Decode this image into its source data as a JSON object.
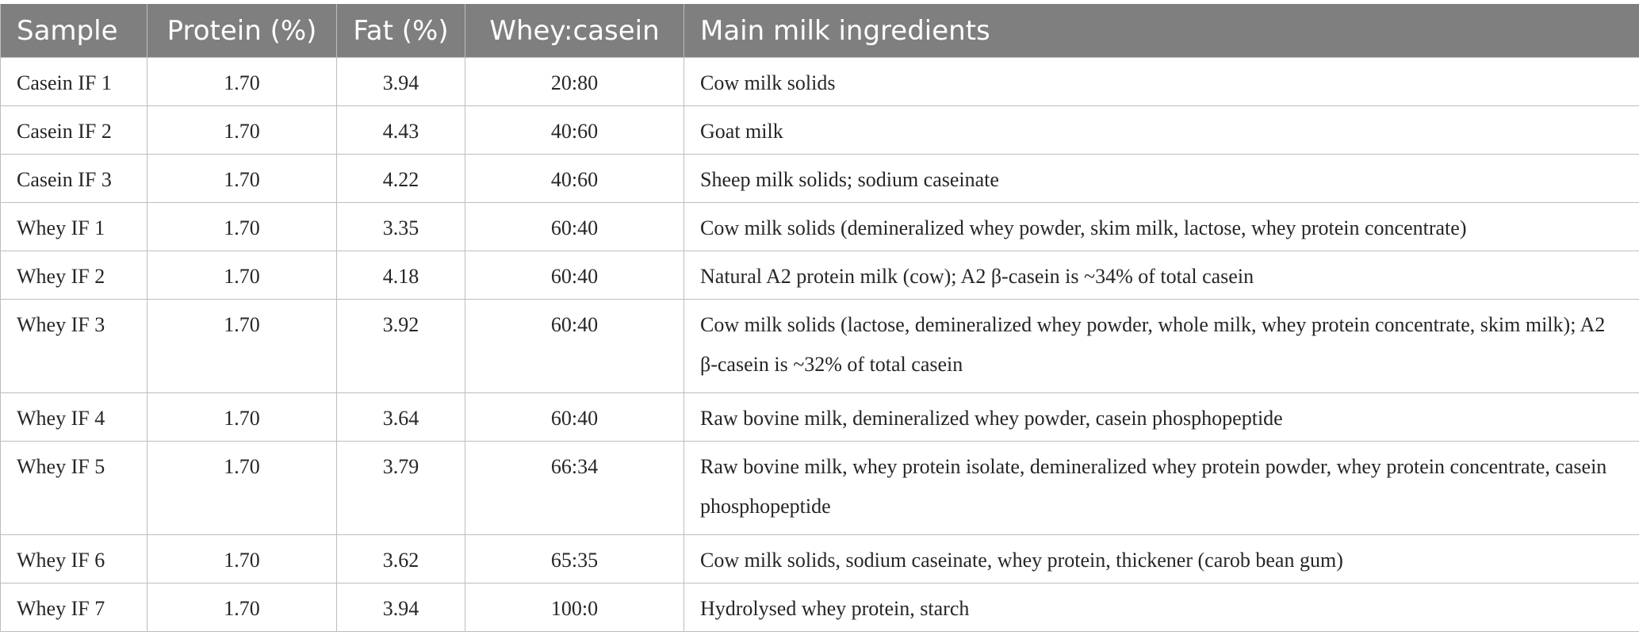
{
  "table": {
    "headers": [
      "Sample",
      "Protein (%)",
      "Fat (%)",
      "Whey:casein",
      "Main milk ingredients"
    ],
    "rows": [
      {
        "sample": "Casein IF 1",
        "protein": "1.70",
        "fat": "3.94",
        "ratio": "20:80",
        "ingredients": "Cow milk solids"
      },
      {
        "sample": "Casein IF 2",
        "protein": "1.70",
        "fat": "4.43",
        "ratio": "40:60",
        "ingredients": "Goat milk"
      },
      {
        "sample": "Casein IF 3",
        "protein": "1.70",
        "fat": "4.22",
        "ratio": "40:60",
        "ingredients": "Sheep milk solids; sodium caseinate"
      },
      {
        "sample": "Whey IF 1",
        "protein": "1.70",
        "fat": "3.35",
        "ratio": "60:40",
        "ingredients": "Cow milk solids (demineralized whey powder, skim milk, lactose, whey protein concentrate)"
      },
      {
        "sample": "Whey IF 2",
        "protein": "1.70",
        "fat": "4.18",
        "ratio": "60:40",
        "ingredients": "Natural A2 protein milk (cow); A2 β-casein is ~34% of total casein"
      },
      {
        "sample": "Whey IF 3",
        "protein": "1.70",
        "fat": "3.92",
        "ratio": "60:40",
        "ingredients": "Cow milk solids (lactose, demineralized whey powder, whole milk, whey protein concentrate, skim milk); A2 β-casein is ~32% of total casein"
      },
      {
        "sample": "Whey IF 4",
        "protein": "1.70",
        "fat": "3.64",
        "ratio": "60:40",
        "ingredients": "Raw bovine milk, demineralized whey powder, casein phosphopeptide"
      },
      {
        "sample": "Whey IF 5",
        "protein": "1.70",
        "fat": "3.79",
        "ratio": "66:34",
        "ingredients": "Raw bovine milk, whey protein isolate, demineralized whey protein powder, whey protein concentrate, casein phosphopeptide"
      },
      {
        "sample": "Whey IF 6",
        "protein": "1.70",
        "fat": "3.62",
        "ratio": "65:35",
        "ingredients": "Cow milk solids, sodium caseinate, whey protein, thickener (carob bean gum)"
      },
      {
        "sample": "Whey IF 7",
        "protein": "1.70",
        "fat": "3.94",
        "ratio": "100:0",
        "ingredients": "Hydrolysed whey protein, starch"
      }
    ]
  }
}
